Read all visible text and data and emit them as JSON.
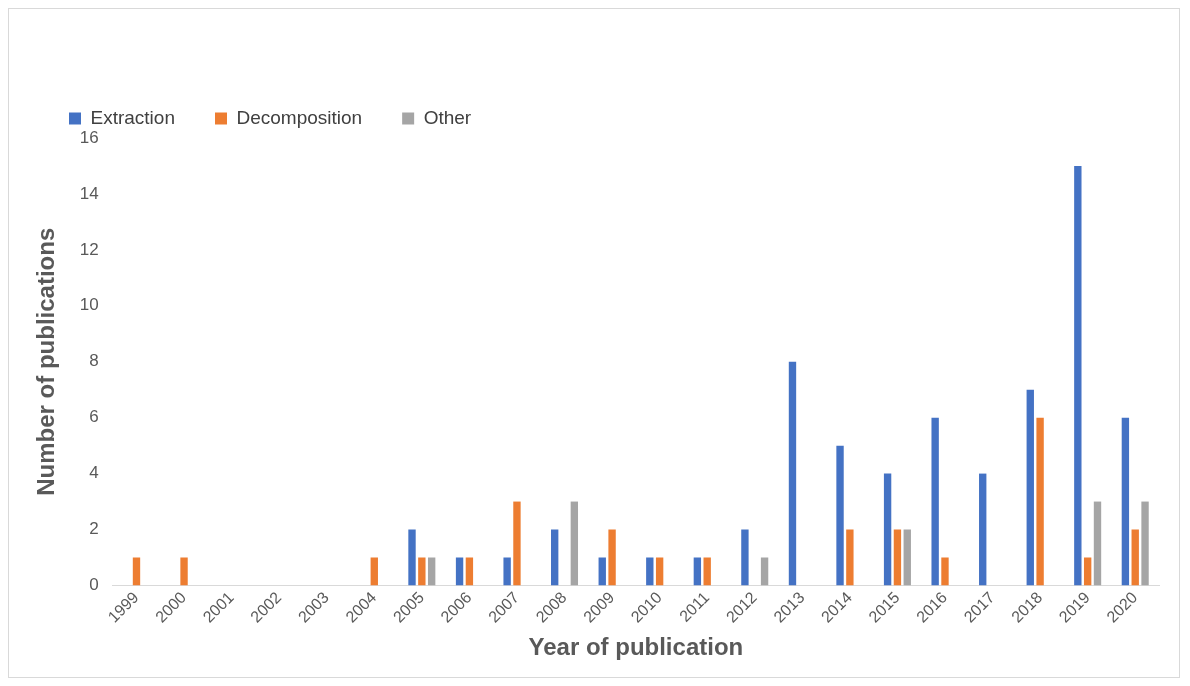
{
  "chart_data": {
    "type": "bar",
    "xlabel": "Year of publication",
    "ylabel": "Number of publications",
    "categories": [
      "1999",
      "2000",
      "2001",
      "2002",
      "2003",
      "2004",
      "2005",
      "2006",
      "2007",
      "2008",
      "2009",
      "2010",
      "2011",
      "2012",
      "2013",
      "2014",
      "2015",
      "2016",
      "2017",
      "2018",
      "2019",
      "2020"
    ],
    "series": [
      {
        "name": "Extraction",
        "color": "#4472c4",
        "values": [
          null,
          null,
          null,
          null,
          null,
          null,
          2,
          1,
          1,
          2,
          1,
          1,
          1,
          2,
          8,
          5,
          4,
          6,
          4,
          7,
          15,
          6
        ]
      },
      {
        "name": "Decomposition",
        "color": "#ed7d31",
        "values": [
          1,
          1,
          null,
          null,
          null,
          1,
          1,
          1,
          3,
          null,
          2,
          1,
          1,
          null,
          null,
          2,
          2,
          1,
          null,
          6,
          1,
          2
        ]
      },
      {
        "name": "Other",
        "color": "#a5a5a5",
        "values": [
          null,
          null,
          null,
          null,
          null,
          null,
          1,
          null,
          null,
          3,
          null,
          null,
          null,
          1,
          null,
          null,
          2,
          null,
          null,
          null,
          3,
          3
        ]
      }
    ],
    "ylim": [
      0,
      16
    ],
    "yticks": [
      0,
      2,
      4,
      6,
      8,
      10,
      12,
      14,
      16
    ],
    "grid": false,
    "legend": "top left"
  }
}
